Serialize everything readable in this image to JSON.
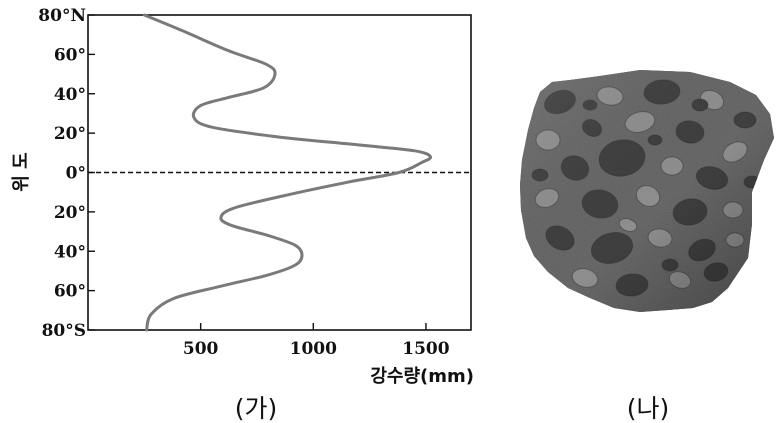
{
  "chart_data": {
    "type": "line",
    "orientation": "vertical-profile",
    "xlabel": "강수량(mm)",
    "ylabel": "위 도",
    "xlim": [
      0,
      1700
    ],
    "ylim": [
      -80,
      80
    ],
    "x_ticks": [
      500,
      1000,
      1500
    ],
    "y_ticks": [
      {
        "value": 80,
        "label": "80°N"
      },
      {
        "value": 60,
        "label": "60°"
      },
      {
        "value": 40,
        "label": "40°"
      },
      {
        "value": 20,
        "label": "20°"
      },
      {
        "value": 0,
        "label": "0°"
      },
      {
        "value": -20,
        "label": "20°"
      },
      {
        "value": -40,
        "label": "40°"
      },
      {
        "value": -60,
        "label": "60°"
      },
      {
        "value": -80,
        "label": "80°S"
      }
    ],
    "grid": false,
    "reference_line": {
      "latitude": 0,
      "style": "dashed"
    },
    "series": [
      {
        "points": [
          {
            "precip": 250,
            "lat": 80
          },
          {
            "precip": 420,
            "lat": 72
          },
          {
            "precip": 620,
            "lat": 62
          },
          {
            "precip": 790,
            "lat": 55
          },
          {
            "precip": 830,
            "lat": 50
          },
          {
            "precip": 780,
            "lat": 43
          },
          {
            "precip": 620,
            "lat": 38
          },
          {
            "precip": 500,
            "lat": 34
          },
          {
            "precip": 470,
            "lat": 28
          },
          {
            "precip": 550,
            "lat": 23
          },
          {
            "precip": 850,
            "lat": 18
          },
          {
            "precip": 1200,
            "lat": 14
          },
          {
            "precip": 1450,
            "lat": 11
          },
          {
            "precip": 1520,
            "lat": 8
          },
          {
            "precip": 1480,
            "lat": 5
          },
          {
            "precip": 1380,
            "lat": 0
          },
          {
            "precip": 1150,
            "lat": -5
          },
          {
            "precip": 900,
            "lat": -11
          },
          {
            "precip": 650,
            "lat": -18
          },
          {
            "precip": 590,
            "lat": -23
          },
          {
            "precip": 640,
            "lat": -27
          },
          {
            "precip": 800,
            "lat": -32
          },
          {
            "precip": 920,
            "lat": -37
          },
          {
            "precip": 950,
            "lat": -42
          },
          {
            "precip": 920,
            "lat": -47
          },
          {
            "precip": 800,
            "lat": -52
          },
          {
            "precip": 580,
            "lat": -58
          },
          {
            "precip": 380,
            "lat": -64
          },
          {
            "precip": 280,
            "lat": -72
          },
          {
            "precip": 260,
            "lat": -80
          }
        ],
        "color": "#7a7a7a"
      }
    ]
  },
  "captions": {
    "left": "(가)",
    "right": "(나)"
  },
  "rock_image": {
    "icon": "conglomerate-rock-photo",
    "colors": {
      "matrix": "#6e6e6e",
      "dark": "#3f3f3f",
      "light": "#8e8e8e"
    }
  }
}
